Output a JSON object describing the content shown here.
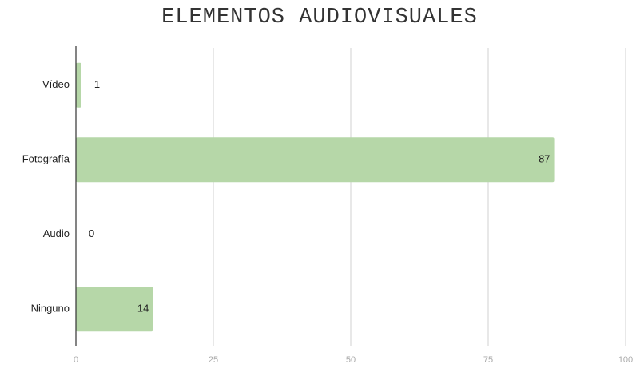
{
  "chart_data": {
    "type": "hbar",
    "title": "ELEMENTOS AUDIOVISUALES",
    "categories": [
      "Vídeo",
      "Fotografía",
      "Audio",
      "Ninguno"
    ],
    "values": [
      1,
      87,
      0,
      14
    ],
    "color": "#b6d7a8",
    "xlim": [
      0,
      100
    ],
    "xticks": [
      0,
      25,
      50,
      75,
      100
    ],
    "grid": true
  }
}
